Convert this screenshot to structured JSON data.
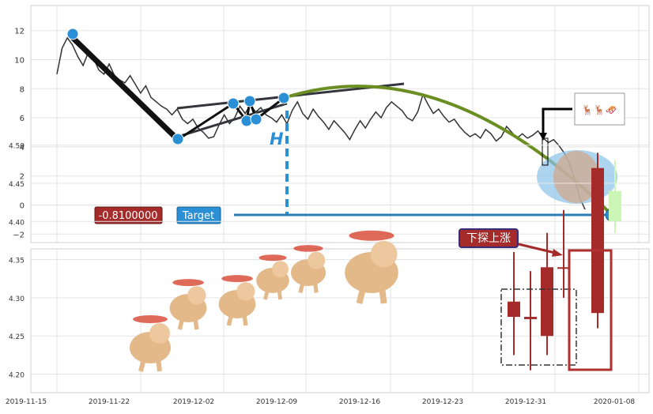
{
  "chart_data": [
    {
      "type": "line",
      "panel": "top",
      "ylim": [
        -2.5,
        13.6
      ],
      "yticks": [
        12,
        10,
        8,
        6,
        4,
        2,
        0,
        -2
      ],
      "ytick_labels": [
        "12",
        "10",
        "8",
        "6",
        "4",
        "2",
        "0",
        "−2"
      ],
      "grid": true,
      "series": [
        {
          "values": [
            9.0,
            10.8,
            11.5,
            11.0,
            10.2,
            9.6,
            10.5,
            10.1,
            9.3,
            9.0,
            9.7,
            8.9,
            8.6,
            8.4,
            8.9,
            8.3,
            7.7,
            8.2,
            7.4,
            7.1,
            6.8,
            6.6,
            6.2,
            6.6,
            5.9,
            5.6,
            5.9,
            5.3,
            5.0,
            4.6,
            4.7,
            5.5,
            6.2,
            5.6,
            6.0,
            6.8,
            6.3,
            6.9,
            6.4,
            6.7,
            6.2,
            6.0,
            5.7,
            6.2,
            5.6,
            6.5,
            7.1,
            6.3,
            5.9,
            6.6,
            6.1,
            5.7,
            5.2,
            5.8,
            5.4,
            5.0,
            4.5,
            5.2,
            5.8,
            5.3,
            5.9,
            6.4,
            6.0,
            6.7,
            7.1,
            6.8,
            6.5,
            6.0,
            5.8,
            6.4,
            7.6,
            6.9,
            6.3,
            6.6,
            6.1,
            5.7,
            5.9,
            5.4,
            5.0,
            4.7,
            4.9,
            4.6,
            5.2,
            4.9,
            4.4,
            4.7,
            5.4,
            5.0,
            4.6,
            4.9,
            4.6,
            4.8,
            5.1,
            4.6,
            4.3,
            4.5,
            4.1,
            3.6,
            2.9,
            1.8,
            0.5,
            -0.3
          ],
          "color": "#333333"
        }
      ],
      "target_label": "Target",
      "target_value": "-0.8100000",
      "h_label": "H",
      "start_point": [
        0,
        11.5
      ],
      "low_point": [
        29,
        4.5
      ],
      "high_point": [
        70,
        7.3
      ],
      "end_point": [
        101,
        -0.81
      ],
      "arc_color": "#6b8e23",
      "marker_color": "#2b8fd6",
      "target_box_color": "#2b8fd6",
      "value_box_color": "#a52a2a"
    },
    {
      "type": "candlestick",
      "panel": "bottom",
      "ylim": [
        4.18,
        4.52
      ],
      "yticks": [
        4.5,
        4.45,
        4.4,
        4.35,
        4.3,
        4.25,
        4.2
      ],
      "ytick_labels": [
        "4.50",
        "4.45",
        "4.40",
        "4.35",
        "4.30",
        "4.25",
        "4.20"
      ],
      "x_labels": [
        "2019-11-15",
        "2019-11-22",
        "2019-12-02",
        "2019-12-09",
        "2019-12-16",
        "2019-12-23",
        "2019-12-31",
        "2020-01-08"
      ],
      "grid": true,
      "annotation_label": "下探上涨",
      "candles": [
        {
          "open": 4.275,
          "close": 4.295,
          "high": 4.36,
          "low": 4.225,
          "color": "#a52a2a"
        },
        {
          "open": 4.272,
          "close": 4.275,
          "high": 4.335,
          "low": 4.205,
          "color": "#a52a2a"
        },
        {
          "open": 4.25,
          "close": 4.34,
          "high": 4.385,
          "low": 4.225,
          "color": "#a52a2a"
        },
        {
          "open": 4.34,
          "close": 4.34,
          "high": 4.415,
          "low": 4.3,
          "color": "#a52a2a"
        },
        {
          "open": 4.28,
          "close": 4.47,
          "high": 4.49,
          "low": 4.26,
          "color": "#a52a2a"
        },
        {
          "open": 4.4,
          "close": 4.44,
          "high": 4.48,
          "low": 4.385,
          "color": "#ccf5b8"
        }
      ]
    }
  ]
}
